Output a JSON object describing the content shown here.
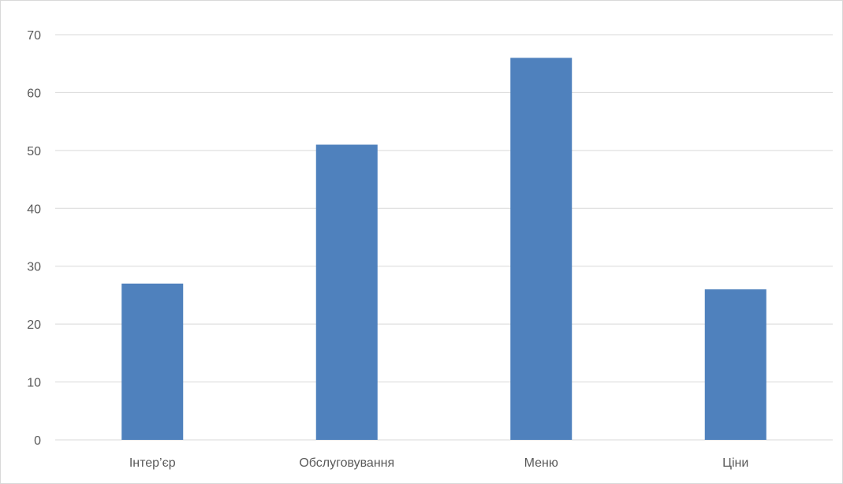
{
  "chart_data": {
    "type": "bar",
    "categories": [
      "Інтер’єр",
      "Обслуговування",
      "Меню",
      "Ціни"
    ],
    "values": [
      27,
      51,
      66,
      26
    ],
    "ylim": [
      0,
      70
    ],
    "yticks": [
      0,
      10,
      20,
      30,
      40,
      50,
      60,
      70
    ],
    "grid": true,
    "legend": "none",
    "colors": {
      "bar": "#4f81bd",
      "grid": "#d9d9d9",
      "text": "#595959"
    }
  }
}
